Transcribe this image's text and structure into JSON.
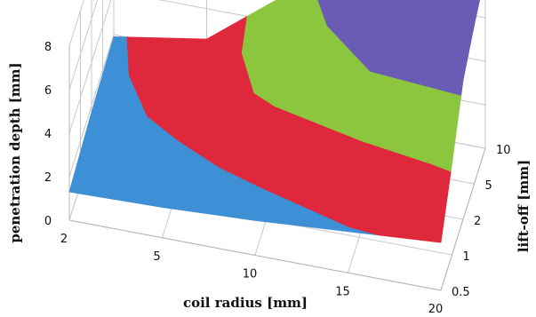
{
  "chart_data": {
    "type": "surface",
    "title": "",
    "xlabel": "coil radius [mm]",
    "ylabel": "lift-off [mm]",
    "zlabel": "penetration depth [mm]",
    "x_ticks": [
      "2",
      "5",
      "10",
      "15",
      "20"
    ],
    "y_ticks": [
      "0.5",
      "1",
      "2",
      "5",
      "10"
    ],
    "z_ticks": [
      "0",
      "2",
      "4",
      "6",
      "8"
    ],
    "zlim": [
      0,
      8
    ],
    "z_band_colors": [
      "#3d8fd6",
      "#e0283c",
      "#8cc63e",
      "#6a5bb5"
    ],
    "grid": true,
    "z_values": [
      [
        1.3,
        1.4,
        1.6,
        1.9,
        2.2
      ],
      [
        1.5,
        1.8,
        2.2,
        3.3,
        4.2
      ],
      [
        1.7,
        2.2,
        4.6,
        6.0,
        6.4
      ],
      [
        1.8,
        2.5,
        5.5,
        6.7,
        7.3
      ],
      [
        1.9,
        2.6,
        5.8,
        7.2,
        8.0
      ]
    ]
  }
}
